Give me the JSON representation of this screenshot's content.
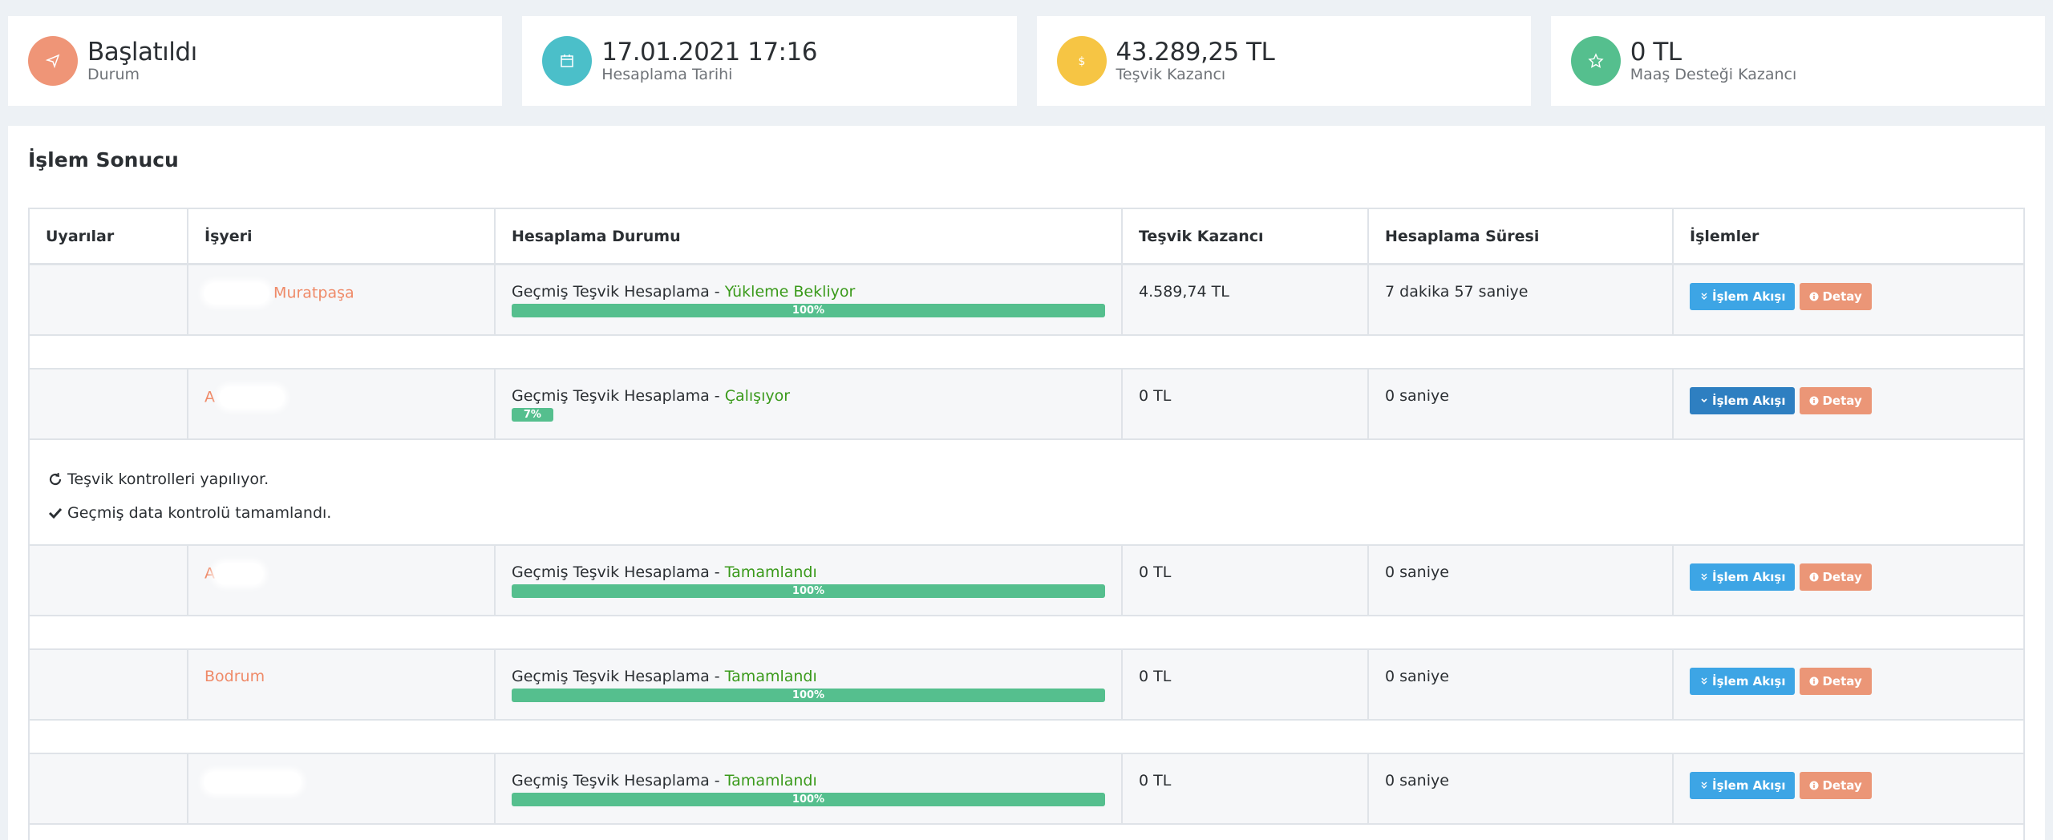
{
  "stats": [
    {
      "value": "Başlatıldı",
      "label": "Durum",
      "color": "#ef9577",
      "icon": "send-icon"
    },
    {
      "value": "17.01.2021 17:16",
      "label": "Hesaplama Tarihi",
      "color": "#4bbfc9",
      "icon": "calendar-icon"
    },
    {
      "value": "43.289,25 TL",
      "label": "Teşvik Kazancı",
      "color": "#f6c544",
      "icon": "dollar-icon"
    },
    {
      "value": "0 TL",
      "label": "Maaş Desteği Kazancı",
      "color": "#55bf8e",
      "icon": "star-icon"
    }
  ],
  "panel": {
    "title": "İşlem Sonucu",
    "headers": [
      "Uyarılar",
      "İşyeri",
      "Hesaplama Durumu",
      "Teşvik Kazancı",
      "Hesaplama Süresi",
      "İşlemler"
    ]
  },
  "rows": [
    {
      "workplace": "Muratpaşa",
      "status_prefix": "Geçmiş Teşvik Hesaplama - ",
      "status": "Yükleme Bekliyor",
      "progress": 100,
      "progress_label": "100%",
      "earning": "4.589,74 TL",
      "duration": "7 dakika 57 saniye"
    },
    {
      "workplace": "A",
      "status_prefix": "Geçmiş Teşvik Hesaplama - ",
      "status": "Çalışıyor",
      "progress": 7,
      "progress_label": "7%",
      "earning": "0 TL",
      "duration": "0 saniye"
    },
    {
      "workplace": "A",
      "status_prefix": "Geçmiş Teşvik Hesaplama - ",
      "status": "Tamamlandı",
      "progress": 100,
      "progress_label": "100%",
      "earning": "0 TL",
      "duration": "0 saniye"
    },
    {
      "workplace": "Bodrum",
      "status_prefix": "Geçmiş Teşvik Hesaplama - ",
      "status": "Tamamlandı",
      "progress": 100,
      "progress_label": "100%",
      "earning": "0 TL",
      "duration": "0 saniye"
    },
    {
      "workplace": "",
      "status_prefix": "Geçmiş Teşvik Hesaplama - ",
      "status": "Tamamlandı",
      "progress": 100,
      "progress_label": "100%",
      "earning": "0 TL",
      "duration": "0 saniye"
    }
  ],
  "buttons": {
    "flow": "İşlem Akışı",
    "detail": "Detay"
  },
  "log": [
    {
      "icon": "spinner-icon",
      "text": "Teşvik kontrolleri yapılıyor."
    },
    {
      "icon": "check-icon",
      "text": "Geçmiş data kontrolü tamamlandı."
    }
  ],
  "colors": {
    "blue": "#3da5e5",
    "blue_active": "#2e7fc1",
    "orange": "#eb9677",
    "green": "#55bf8e",
    "status_green": "#3a9a1b",
    "place": "#ef8a68"
  }
}
